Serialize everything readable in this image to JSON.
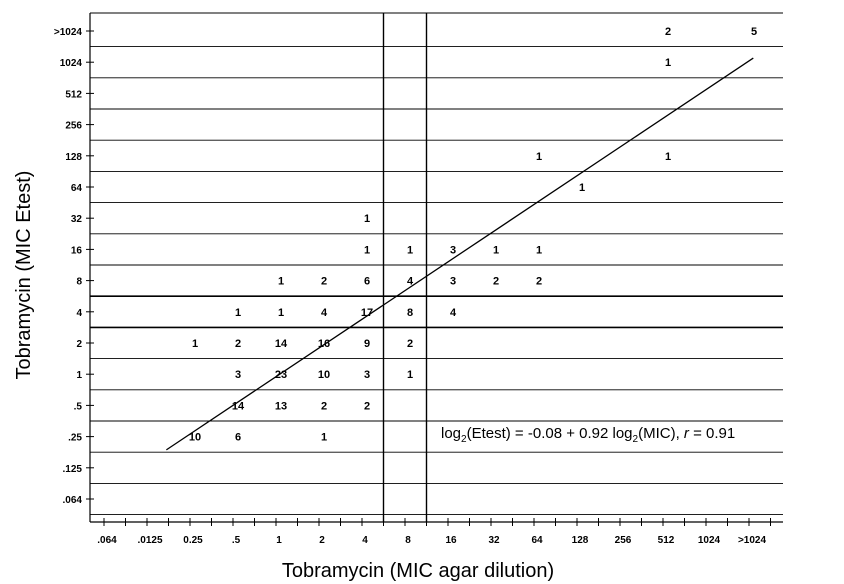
{
  "chart_data": {
    "type": "scatter",
    "title": "",
    "xlabel": "Tobramycin (MIC agar dilution)",
    "ylabel": "Tobramycin (MIC Etest)",
    "x_categories": [
      ".064",
      ".0125",
      "0.25",
      ".5",
      "1",
      "2",
      "4",
      "8",
      "16",
      "32",
      "64",
      "128",
      "256",
      "512",
      "1024",
      ">1024"
    ],
    "y_categories": [
      ".064",
      ".125",
      ".25",
      ".5",
      "1",
      "2",
      "4",
      "8",
      "16",
      "32",
      "64",
      "128",
      "256",
      "512",
      "1024",
      ">1024"
    ],
    "points": [
      {
        "x": "0.25",
        "y": "2",
        "count": 1
      },
      {
        "x": "0.25",
        "y": ".25",
        "count": 10
      },
      {
        "x": ".5",
        "y": "4",
        "count": 1
      },
      {
        "x": ".5",
        "y": "2",
        "count": 2
      },
      {
        "x": ".5",
        "y": "1",
        "count": 3
      },
      {
        "x": ".5",
        "y": ".5",
        "count": 14
      },
      {
        "x": ".5",
        "y": ".25",
        "count": 6
      },
      {
        "x": "1",
        "y": "8",
        "count": 1
      },
      {
        "x": "1",
        "y": "4",
        "count": 1
      },
      {
        "x": "1",
        "y": "2",
        "count": 14
      },
      {
        "x": "1",
        "y": "1",
        "count": 23
      },
      {
        "x": "1",
        "y": ".5",
        "count": 13
      },
      {
        "x": "2",
        "y": "8",
        "count": 2
      },
      {
        "x": "2",
        "y": "4",
        "count": 4
      },
      {
        "x": "2",
        "y": "2",
        "count": 16
      },
      {
        "x": "2",
        "y": "1",
        "count": 10
      },
      {
        "x": "2",
        "y": ".5",
        "count": 2
      },
      {
        "x": "2",
        "y": ".25",
        "count": 1
      },
      {
        "x": "4",
        "y": "32",
        "count": 1
      },
      {
        "x": "4",
        "y": "16",
        "count": 1
      },
      {
        "x": "4",
        "y": "8",
        "count": 6
      },
      {
        "x": "4",
        "y": "4",
        "count": 17
      },
      {
        "x": "4",
        "y": "2",
        "count": 9
      },
      {
        "x": "4",
        "y": "1",
        "count": 3
      },
      {
        "x": "4",
        "y": ".5",
        "count": 2
      },
      {
        "x": "8",
        "y": "16",
        "count": 1
      },
      {
        "x": "8",
        "y": "8",
        "count": 4
      },
      {
        "x": "8",
        "y": "4",
        "count": 8
      },
      {
        "x": "8",
        "y": "2",
        "count": 2
      },
      {
        "x": "8",
        "y": "1",
        "count": 1
      },
      {
        "x": "16",
        "y": "16",
        "count": 3
      },
      {
        "x": "16",
        "y": "8",
        "count": 3
      },
      {
        "x": "16",
        "y": "4",
        "count": 4
      },
      {
        "x": "32",
        "y": "16",
        "count": 1
      },
      {
        "x": "32",
        "y": "8",
        "count": 2
      },
      {
        "x": "64",
        "y": "128",
        "count": 1
      },
      {
        "x": "64",
        "y": "16",
        "count": 1
      },
      {
        "x": "64",
        "y": "8",
        "count": 2
      },
      {
        "x": "128",
        "y": "64",
        "count": 1
      },
      {
        "x": "512",
        "y": ">1024",
        "count": 2
      },
      {
        "x": "512",
        "y": "1024",
        "count": 1
      },
      {
        "x": "512",
        "y": "128",
        "count": 1
      },
      {
        "x": ">1024",
        "y": ">1024",
        "count": 5
      }
    ],
    "regression": {
      "intercept": -0.08,
      "slope": 0.92,
      "r": 0.91,
      "x_range": [
        "0.25",
        ">1024"
      ],
      "label_parts": {
        "lhs_prefix": "log",
        "lhs_sub": "2",
        "lhs_rest": "(Etest) = -0.08 + 0.92 log",
        "rhs_sub": "2",
        "rhs_rest": "(MIC), ",
        "r_symbol": "r",
        "r_value": " = 0.91"
      }
    },
    "breakpoint_lines_x": [
      "4",
      "8"
    ],
    "grid": true,
    "legend": "none"
  }
}
